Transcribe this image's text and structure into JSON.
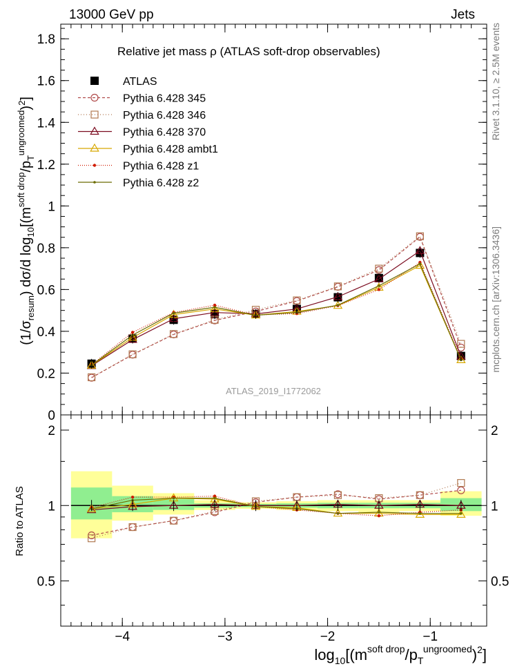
{
  "header": {
    "left": "13000 GeV pp",
    "right": "Jets"
  },
  "side_labels": {
    "rivet": "Rivet 3.1.10, ≥ 2.5M events",
    "mcplots": "mcplots.cern.ch [arXiv:1306.3436]"
  },
  "chart_data": [
    {
      "type": "line",
      "title": "Relative jet mass  ρ (ATLAS soft-drop observables)",
      "watermark": "ATLAS_2019_I1772062",
      "ylabel": "(1/σresum) dσ/d log10[(m^soft drop/pT^ungroomed)^2]",
      "xlabel": "log10[(m^soft drop/pT^ungroomed)^2]",
      "xlim": [
        -4.6,
        -0.45
      ],
      "ylim": [
        0,
        1.87
      ],
      "y_ticks": [
        "0",
        "0.2",
        "0.4",
        "0.6",
        "0.8",
        "1",
        "1.2",
        "1.4",
        "1.6",
        "1.8"
      ],
      "x_ticks": [
        "−4",
        "−3",
        "−2",
        "−1"
      ],
      "x": [
        -4.3,
        -3.9,
        -3.5,
        -3.1,
        -2.7,
        -2.3,
        -1.9,
        -1.5,
        -1.1,
        -0.7
      ],
      "series": [
        {
          "name": "ATLAS",
          "color": "#000000",
          "marker": "filled-square",
          "dash": "none",
          "values": [
            0.245,
            0.365,
            0.455,
            0.482,
            0.483,
            0.507,
            0.563,
            0.655,
            0.775,
            0.282
          ]
        },
        {
          "name": "Pythia 6.428 345",
          "color": "#b04a4a",
          "marker": "open-circle",
          "dash": "4,3",
          "values": [
            0.178,
            0.288,
            0.385,
            0.452,
            0.495,
            0.545,
            0.613,
            0.693,
            0.852,
            0.322
          ]
        },
        {
          "name": "Pythia 6.428 346",
          "color": "#b07850",
          "marker": "open-square",
          "dash": "1,3",
          "values": [
            0.18,
            0.29,
            0.387,
            0.455,
            0.503,
            0.548,
            0.615,
            0.7,
            0.855,
            0.34
          ]
        },
        {
          "name": "Pythia 6.428 370",
          "color": "#7a0a1e",
          "marker": "open-triangle",
          "dash": "none",
          "values": [
            0.235,
            0.36,
            0.46,
            0.49,
            0.483,
            0.507,
            0.565,
            0.65,
            0.785,
            0.28
          ]
        },
        {
          "name": "Pythia 6.428 ambt1",
          "color": "#d7a800",
          "marker": "open-triangle",
          "dash": "none",
          "values": [
            0.237,
            0.37,
            0.48,
            0.507,
            0.477,
            0.495,
            0.523,
            0.61,
            0.715,
            0.263
          ]
        },
        {
          "name": "Pythia 6.428 z1",
          "color": "#d01a00",
          "marker": "small-star",
          "dash": "1,2",
          "values": [
            0.24,
            0.395,
            0.49,
            0.525,
            0.478,
            0.485,
            0.523,
            0.6,
            0.73,
            0.27
          ]
        },
        {
          "name": "Pythia 6.428 z2",
          "color": "#6b6b00",
          "marker": "small-dot",
          "dash": "none",
          "values": [
            0.238,
            0.382,
            0.487,
            0.515,
            0.477,
            0.49,
            0.525,
            0.618,
            0.723,
            0.263
          ]
        }
      ]
    },
    {
      "type": "line",
      "ylabel": "Ratio to ATLAS",
      "xlim": [
        -4.6,
        -0.45
      ],
      "ylim": [
        0.33,
        2.3
      ],
      "y_ticks": [
        "0.5",
        "1",
        "2"
      ],
      "x": [
        -4.3,
        -3.9,
        -3.5,
        -3.1,
        -2.7,
        -2.3,
        -1.9,
        -1.5,
        -1.1,
        -0.7
      ],
      "bands": {
        "edges": [
          -4.5,
          -4.1,
          -3.7,
          -3.3,
          -2.9,
          -2.5,
          -2.1,
          -1.7,
          -1.3,
          -0.9,
          -0.5
        ],
        "yellow": [
          [
            0.74,
            1.37
          ],
          [
            0.87,
            1.2
          ],
          [
            0.92,
            1.12
          ],
          [
            0.96,
            1.05
          ],
          [
            0.97,
            1.03
          ],
          [
            0.96,
            1.04
          ],
          [
            0.95,
            1.05
          ],
          [
            0.94,
            1.05
          ],
          [
            0.95,
            1.05
          ],
          [
            0.91,
            1.14
          ]
        ],
        "green": [
          [
            0.88,
            1.18
          ],
          [
            0.94,
            1.09
          ],
          [
            0.96,
            1.06
          ],
          [
            0.98,
            1.02
          ],
          [
            0.985,
            1.015
          ],
          [
            0.98,
            1.02
          ],
          [
            0.975,
            1.025
          ],
          [
            0.975,
            1.025
          ],
          [
            0.975,
            1.025
          ],
          [
            0.95,
            1.07
          ]
        ]
      },
      "series": [
        {
          "name": "Pythia 6.428 345",
          "values": [
            0.76,
            0.82,
            0.87,
            0.94,
            1.03,
            1.08,
            1.11,
            1.06,
            1.1,
            1.15
          ]
        },
        {
          "name": "Pythia 6.428 346",
          "values": [
            0.74,
            0.82,
            0.87,
            0.95,
            1.04,
            1.08,
            1.1,
            1.07,
            1.1,
            1.23
          ]
        },
        {
          "name": "Pythia 6.428 370",
          "values": [
            0.96,
            0.99,
            1.0,
            1.01,
            1.0,
            1.0,
            1.01,
            1.0,
            1.01,
            1.0
          ]
        },
        {
          "name": "Pythia 6.428 ambt1",
          "values": [
            0.97,
            1.01,
            1.07,
            1.06,
            0.99,
            0.98,
            0.93,
            0.93,
            0.92,
            0.92
          ]
        },
        {
          "name": "Pythia 6.428 z1",
          "values": [
            0.98,
            1.08,
            1.08,
            1.09,
            0.99,
            0.96,
            0.93,
            0.91,
            0.94,
            0.96
          ]
        },
        {
          "name": "Pythia 6.428 z2",
          "values": [
            0.97,
            1.05,
            1.07,
            1.07,
            0.99,
            0.97,
            0.93,
            0.94,
            0.93,
            0.93
          ]
        }
      ]
    }
  ]
}
